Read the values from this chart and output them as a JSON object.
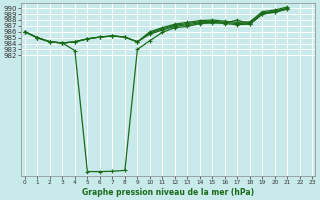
{
  "title": "Graphe pression niveau de la mer (hPa)",
  "background_color": "#c8eaea",
  "grid_color": "#ffffff",
  "line_color": "#1a6b1a",
  "xlim": [
    -0.3,
    23.2
  ],
  "ylim": [
    961.5,
    990.8
  ],
  "xtick_labels": [
    "0",
    "1",
    "2",
    "3",
    "4",
    "5",
    "6",
    "7",
    "8",
    "9",
    "10",
    "11",
    "12",
    "13",
    "14",
    "15",
    "16",
    "17",
    "18",
    "19",
    "20",
    "21",
    "22",
    "23"
  ],
  "ytick_vals": [
    990,
    989,
    988,
    987,
    986,
    985,
    984,
    983,
    982
  ],
  "line1_y": [
    986.0,
    985.0,
    984.3,
    984.1,
    982.8,
    962.3,
    962.3,
    962.35,
    962.5,
    983.0,
    984.5,
    985.9,
    986.7,
    986.9,
    987.4,
    987.5,
    987.5,
    988.0,
    987.3,
    989.0,
    989.4,
    989.9,
    null,
    null
  ],
  "line2_y": [
    986.0,
    985.0,
    984.3,
    984.1,
    984.3,
    984.8,
    985.1,
    985.3,
    985.1,
    984.3,
    985.6,
    986.3,
    986.9,
    987.2,
    987.5,
    987.6,
    987.4,
    987.2,
    987.3,
    989.0,
    989.3,
    989.85,
    null,
    null
  ],
  "line3_y": [
    986.0,
    985.0,
    984.3,
    984.1,
    984.3,
    984.8,
    985.1,
    985.3,
    985.1,
    984.3,
    985.8,
    986.5,
    987.1,
    987.4,
    987.7,
    987.8,
    987.6,
    987.4,
    987.5,
    989.2,
    989.5,
    990.0,
    null,
    null
  ],
  "line4_y": [
    986.0,
    985.0,
    984.3,
    984.1,
    984.3,
    984.8,
    985.1,
    985.3,
    985.1,
    984.3,
    986.0,
    986.7,
    987.3,
    987.6,
    987.9,
    988.0,
    987.8,
    987.6,
    987.7,
    989.4,
    989.7,
    990.2,
    null,
    null
  ]
}
